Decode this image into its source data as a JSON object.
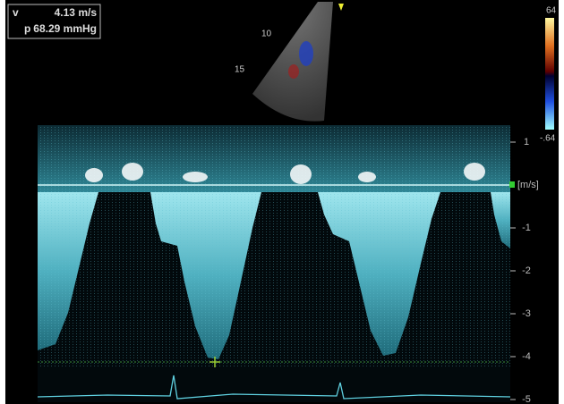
{
  "measurement": {
    "v_label": "v",
    "v_value": "4.13 m/s",
    "p_label": "p",
    "p_value": "68.29 mmHg"
  },
  "sector": {
    "depth_labels": [
      "10",
      "15"
    ]
  },
  "color_bar": {
    "top": "64",
    "bottom": "-.64"
  },
  "velocity_scale": {
    "unit": "[m/s]",
    "ticks": [
      1,
      -1,
      -2,
      -3,
      -4,
      -5
    ]
  }
}
